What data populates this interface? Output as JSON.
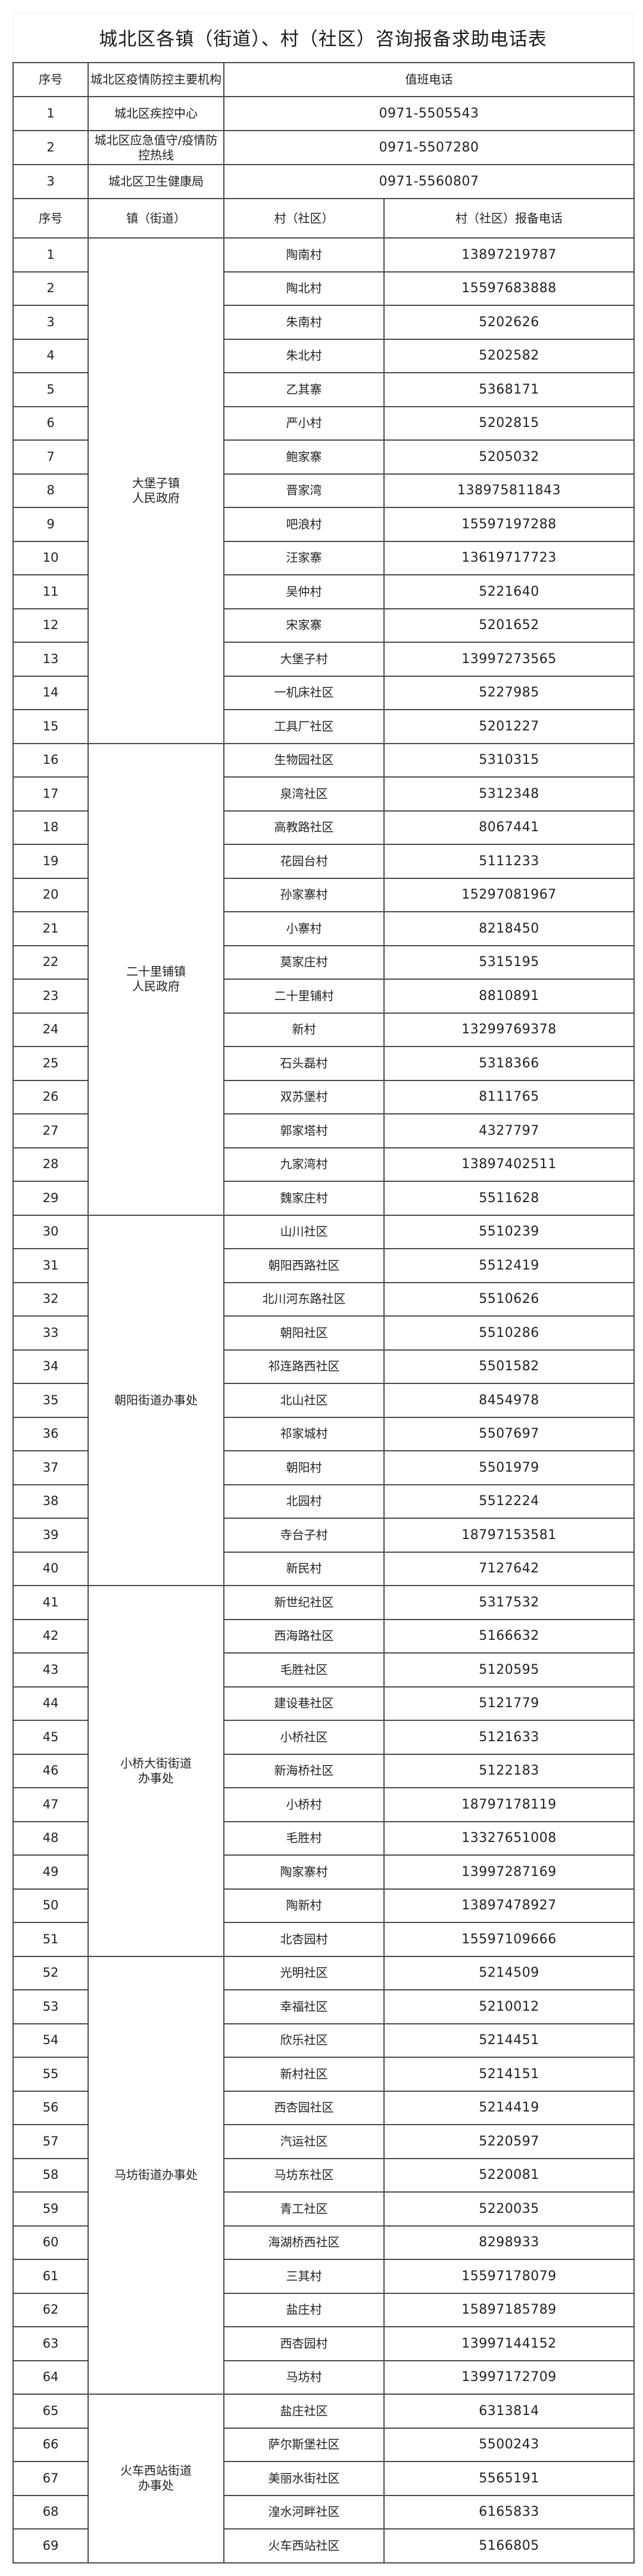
{
  "title": "城北区各镇（街道）、村（社区）咨询报备求助电话表",
  "org_table": {
    "headers": [
      "序号",
      "城北区疫情防控主要机构",
      "值班电话"
    ],
    "rows": [
      {
        "no": "1",
        "org": "城北区疾控中心",
        "phone": "0971-5505543"
      },
      {
        "no": "2",
        "org": "城北区应急值守/疫情防控热线",
        "phone": "0971-5507280"
      },
      {
        "no": "3",
        "org": "城北区卫生健康局",
        "phone": "0971-5560807"
      }
    ]
  },
  "village_table": {
    "headers": [
      "序号",
      "镇（街道）",
      "村（社区）",
      "村（社区）报备电话"
    ],
    "groups": [
      {
        "town": "大堡子镇\n人民政府",
        "rows": [
          {
            "no": "1",
            "village": "陶南村",
            "phone": "13897219787"
          },
          {
            "no": "2",
            "village": "陶北村",
            "phone": "15597683888"
          },
          {
            "no": "3",
            "village": "朱南村",
            "phone": "5202626"
          },
          {
            "no": "4",
            "village": "朱北村",
            "phone": "5202582"
          },
          {
            "no": "5",
            "village": "乙其寨",
            "phone": "5368171"
          },
          {
            "no": "6",
            "village": "严小村",
            "phone": "5202815"
          },
          {
            "no": "7",
            "village": "鲍家寨",
            "phone": "5205032"
          },
          {
            "no": "8",
            "village": "晋家湾",
            "phone": "13897581l843"
          },
          {
            "no": "9",
            "village": "吧浪村",
            "phone": "15597197288"
          },
          {
            "no": "10",
            "village": "汪家寨",
            "phone": "13619717723"
          },
          {
            "no": "11",
            "village": "吴仲村",
            "phone": "5221640"
          },
          {
            "no": "12",
            "village": "宋家寨",
            "phone": "5201652"
          },
          {
            "no": "13",
            "village": "大堡子村",
            "phone": "13997273565"
          },
          {
            "no": "14",
            "village": "一机床社区",
            "phone": "5227985"
          },
          {
            "no": "15",
            "village": "工具厂社区",
            "phone": "5201227"
          }
        ]
      },
      {
        "town": "二十里铺镇\n人民政府",
        "rows": [
          {
            "no": "16",
            "village": "生物园社区",
            "phone": "5310315"
          },
          {
            "no": "17",
            "village": "泉湾社区",
            "phone": "5312348"
          },
          {
            "no": "18",
            "village": "高教路社区",
            "phone": "8067441"
          },
          {
            "no": "19",
            "village": "花园台村",
            "phone": "5111233"
          },
          {
            "no": "20",
            "village": "孙家寨村",
            "phone": "15297081967"
          },
          {
            "no": "21",
            "village": "小寨村",
            "phone": "8218450"
          },
          {
            "no": "22",
            "village": "莫家庄村",
            "phone": "5315195"
          },
          {
            "no": "23",
            "village": "二十里铺村",
            "phone": "8810891"
          },
          {
            "no": "24",
            "village": "新村",
            "phone": "13299769378"
          },
          {
            "no": "25",
            "village": "石头磊村",
            "phone": "5318366"
          },
          {
            "no": "26",
            "village": "双苏堡村",
            "phone": "8111765"
          },
          {
            "no": "27",
            "village": "郭家塔村",
            "phone": "4327797"
          },
          {
            "no": "28",
            "village": "九家湾村",
            "phone": "13897402511"
          },
          {
            "no": "29",
            "village": "魏家庄村",
            "phone": "5511628"
          }
        ]
      },
      {
        "town": "朝阳街道办事处",
        "rows": [
          {
            "no": "30",
            "village": "山川社区",
            "phone": "5510239"
          },
          {
            "no": "31",
            "village": "朝阳西路社区",
            "phone": "5512419"
          },
          {
            "no": "32",
            "village": "北川河东路社区",
            "phone": "5510626"
          },
          {
            "no": "33",
            "village": "朝阳社区",
            "phone": "5510286"
          },
          {
            "no": "34",
            "village": "祁连路西社区",
            "phone": "5501582"
          },
          {
            "no": "35",
            "village": "北山社区",
            "phone": "8454978"
          },
          {
            "no": "36",
            "village": "祁家城村",
            "phone": "5507697"
          },
          {
            "no": "37",
            "village": "朝阳村",
            "phone": "5501979"
          },
          {
            "no": "38",
            "village": "北园村",
            "phone": "5512224"
          },
          {
            "no": "39",
            "village": "寺台子村",
            "phone": "18797153581"
          },
          {
            "no": "40",
            "village": "新民村",
            "phone": "7127642"
          }
        ]
      },
      {
        "town": "小桥大街街道\n办事处",
        "rows": [
          {
            "no": "41",
            "village": "新世纪社区",
            "phone": "5317532"
          },
          {
            "no": "42",
            "village": "西海路社区",
            "phone": "5166632"
          },
          {
            "no": "43",
            "village": "毛胜社区",
            "phone": "5120595"
          },
          {
            "no": "44",
            "village": "建设巷社区",
            "phone": "5121779"
          },
          {
            "no": "45",
            "village": "小桥社区",
            "phone": "5121633"
          },
          {
            "no": "46",
            "village": "新海桥社区",
            "phone": "5122183"
          },
          {
            "no": "47",
            "village": "小桥村",
            "phone": "18797178119"
          },
          {
            "no": "48",
            "village": "毛胜村",
            "phone": "13327651008"
          },
          {
            "no": "49",
            "village": "陶家寨村",
            "phone": "13997287169"
          },
          {
            "no": "50",
            "village": "陶新村",
            "phone": "13897478927"
          },
          {
            "no": "51",
            "village": "北杏园村",
            "phone": "15597109666"
          }
        ]
      },
      {
        "town": "马坊街道办事处",
        "rows": [
          {
            "no": "52",
            "village": "光明社区",
            "phone": "5214509"
          },
          {
            "no": "53",
            "village": "幸福社区",
            "phone": "5210012"
          },
          {
            "no": "54",
            "village": "欣乐社区",
            "phone": "5214451"
          },
          {
            "no": "55",
            "village": "新村社区",
            "phone": "5214151"
          },
          {
            "no": "56",
            "village": "西杏园社区",
            "phone": "5214419"
          },
          {
            "no": "57",
            "village": "汽运社区",
            "phone": "5220597"
          },
          {
            "no": "58",
            "village": "马坊东社区",
            "phone": "5220081"
          },
          {
            "no": "59",
            "village": "青工社区",
            "phone": "5220035"
          },
          {
            "no": "60",
            "village": "海湖桥西社区",
            "phone": "8298933"
          },
          {
            "no": "61",
            "village": "三其村",
            "phone": "15597178079"
          },
          {
            "no": "62",
            "village": "盐庄村",
            "phone": "15897185789"
          },
          {
            "no": "63",
            "village": "西杏园村",
            "phone": "13997144152"
          },
          {
            "no": "64",
            "village": "马坊村",
            "phone": "13997172709"
          }
        ]
      },
      {
        "town": "火车西站街道\n办事处",
        "rows": [
          {
            "no": "65",
            "village": "盐庄社区",
            "phone": "6313814"
          },
          {
            "no": "66",
            "village": "萨尔斯堡社区",
            "phone": "5500243"
          },
          {
            "no": "67",
            "village": "美丽水街社区",
            "phone": "5565191"
          },
          {
            "no": "68",
            "village": "湟水河畔社区",
            "phone": "6165833"
          },
          {
            "no": "69",
            "village": "火车西站社区",
            "phone": "5166805"
          }
        ]
      }
    ]
  }
}
